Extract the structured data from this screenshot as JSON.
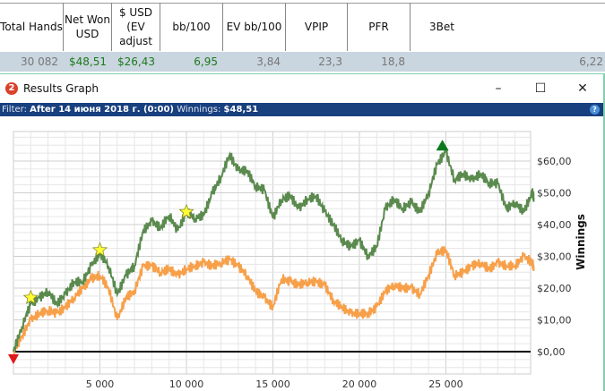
{
  "stats": {
    "columns": [
      "Total Hands",
      "Net Won USD",
      "$ USD (EV adjust",
      "bb/100",
      "EV bb/100",
      "VPIP",
      "PFR",
      "3Bet"
    ],
    "values": [
      "30 082",
      "$48,51",
      "$26,43",
      "6,95",
      "3,84",
      "23,3",
      "18,8",
      "6,22"
    ]
  },
  "window": {
    "title": "Results Graph",
    "logo": "2",
    "minimize": "–",
    "maximize": "☐",
    "close": "✕"
  },
  "filter": {
    "label": "Filter:",
    "value": "After 14 июня 2018 г. (0:00)",
    "winnings_label": "Winnings:",
    "winnings_value": "$48,51",
    "help": "?"
  },
  "colors": {
    "winnings": "#5a8a4e",
    "ev": "#f7a04a",
    "zero_line": "#000000",
    "header_bar": "#183f7e"
  },
  "chart_data": {
    "type": "line",
    "ylabel": "Winnings",
    "xlim": [
      0,
      30082
    ],
    "ylim": [
      -5,
      70
    ],
    "xticks": [
      "5 000",
      "10 000",
      "15 000",
      "20 000",
      "25 000"
    ],
    "xtick_values": [
      5000,
      10000,
      15000,
      20000,
      25000
    ],
    "yticks": [
      "$0,00",
      "$10,00",
      "$20,00",
      "$30,00",
      "$40,00",
      "$50,00",
      "$60,00"
    ],
    "ytick_values": [
      0,
      10,
      20,
      30,
      40,
      50,
      60
    ],
    "grid": true,
    "x": [
      0,
      500,
      1000,
      1500,
      2000,
      2500,
      3000,
      3500,
      4000,
      4500,
      5000,
      5500,
      6000,
      6500,
      7000,
      7500,
      8000,
      8500,
      9000,
      9500,
      10000,
      10500,
      11000,
      11500,
      12000,
      12500,
      13000,
      13500,
      14000,
      14500,
      15000,
      15500,
      16000,
      16500,
      17000,
      17500,
      18000,
      18500,
      19000,
      19500,
      20000,
      20500,
      21000,
      21500,
      22000,
      22500,
      23000,
      23500,
      24000,
      24500,
      25000,
      25500,
      26000,
      26500,
      27000,
      27500,
      28000,
      28500,
      29000,
      29500,
      30000,
      30082
    ],
    "series": [
      {
        "key": "winnings",
        "values": [
          0,
          8,
          15,
          17,
          19,
          15,
          18,
          22,
          22,
          27,
          31,
          27,
          18,
          24,
          27,
          38,
          41,
          39,
          43,
          38,
          44,
          42,
          43,
          50,
          55,
          62,
          57,
          57,
          52,
          51,
          42,
          48,
          49,
          45,
          48,
          49,
          44,
          40,
          35,
          33,
          35,
          30,
          33,
          45,
          48,
          45,
          47,
          44,
          50,
          59,
          63,
          54,
          56,
          54,
          56,
          53,
          53,
          45,
          47,
          44,
          50,
          48.51
        ]
      },
      {
        "key": "ev",
        "values": [
          0,
          5,
          10,
          12,
          13,
          12,
          14,
          17,
          20,
          23,
          24,
          20,
          10,
          17,
          19,
          27,
          27,
          25,
          26,
          24,
          26,
          27,
          28,
          27,
          28,
          29,
          27,
          24,
          19,
          17,
          14,
          23,
          22,
          21,
          22,
          22,
          21,
          16,
          14,
          12,
          12,
          12,
          14,
          19,
          21,
          20,
          20,
          18,
          24,
          31,
          32,
          24,
          25,
          27,
          28,
          26,
          28,
          27,
          27,
          30,
          28,
          26.43
        ]
      }
    ],
    "markers": [
      {
        "type": "star",
        "x": 1000,
        "y": 17
      },
      {
        "type": "star",
        "x": 5000,
        "y": 32
      },
      {
        "type": "star",
        "x": 10000,
        "y": 44
      },
      {
        "type": "max-triangle",
        "x": 24800,
        "y": 65
      },
      {
        "type": "min-triangle",
        "x": 0,
        "y": -2
      }
    ]
  }
}
